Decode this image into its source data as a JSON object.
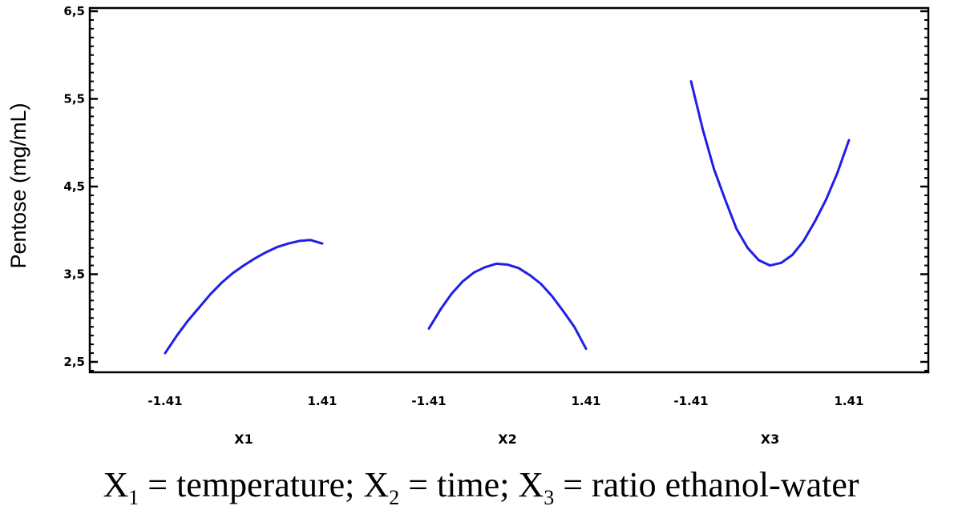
{
  "chart_data": {
    "type": "line",
    "ylabel": "Pentose (mg/mL)",
    "ylim": [
      2.4,
      6.5
    ],
    "yticks": [
      "2,5",
      "3,5",
      "4,5",
      "5,5",
      "6,5"
    ],
    "ytick_values": [
      2.5,
      3.5,
      4.5,
      5.5,
      6.5
    ],
    "grid": false,
    "panels": [
      {
        "label": "X1",
        "xticks": [
          "-1.41",
          "1.41"
        ],
        "xtick_values": [
          -1.41,
          1.41
        ],
        "x": [
          -1.41,
          -1.2,
          -1.0,
          -0.8,
          -0.6,
          -0.4,
          -0.2,
          0.0,
          0.2,
          0.4,
          0.6,
          0.8,
          1.0,
          1.2,
          1.41
        ],
        "y": [
          2.6,
          2.8,
          2.97,
          3.12,
          3.27,
          3.4,
          3.51,
          3.6,
          3.68,
          3.75,
          3.81,
          3.85,
          3.88,
          3.89,
          3.85
        ]
      },
      {
        "label": "X2",
        "xticks": [
          "-1.41",
          "1.41"
        ],
        "xtick_values": [
          -1.41,
          1.41
        ],
        "x": [
          -1.41,
          -1.2,
          -1.0,
          -0.8,
          -0.6,
          -0.4,
          -0.2,
          0.0,
          0.2,
          0.4,
          0.6,
          0.8,
          1.0,
          1.2,
          1.41
        ],
        "y": [
          2.88,
          3.1,
          3.28,
          3.42,
          3.52,
          3.58,
          3.62,
          3.61,
          3.57,
          3.49,
          3.39,
          3.25,
          3.08,
          2.9,
          2.65
        ]
      },
      {
        "label": "X3",
        "xticks": [
          "-1.41",
          "1.41"
        ],
        "xtick_values": [
          -1.41,
          1.41
        ],
        "x": [
          -1.41,
          -1.2,
          -1.0,
          -0.8,
          -0.6,
          -0.4,
          -0.2,
          0.0,
          0.2,
          0.4,
          0.6,
          0.8,
          1.0,
          1.2,
          1.41
        ],
        "y": [
          5.7,
          5.15,
          4.7,
          4.35,
          4.02,
          3.8,
          3.66,
          3.6,
          3.63,
          3.72,
          3.88,
          4.1,
          4.35,
          4.65,
          5.03
        ]
      }
    ]
  },
  "caption": {
    "x1": "X",
    "x1_sub": "1",
    "x1_text": " = temperature; ",
    "x2": "X",
    "x2_sub": "2",
    "x2_text": " = time; ",
    "x3": "X",
    "x3_sub": "3",
    "x3_text": " = ratio ethanol-water"
  }
}
